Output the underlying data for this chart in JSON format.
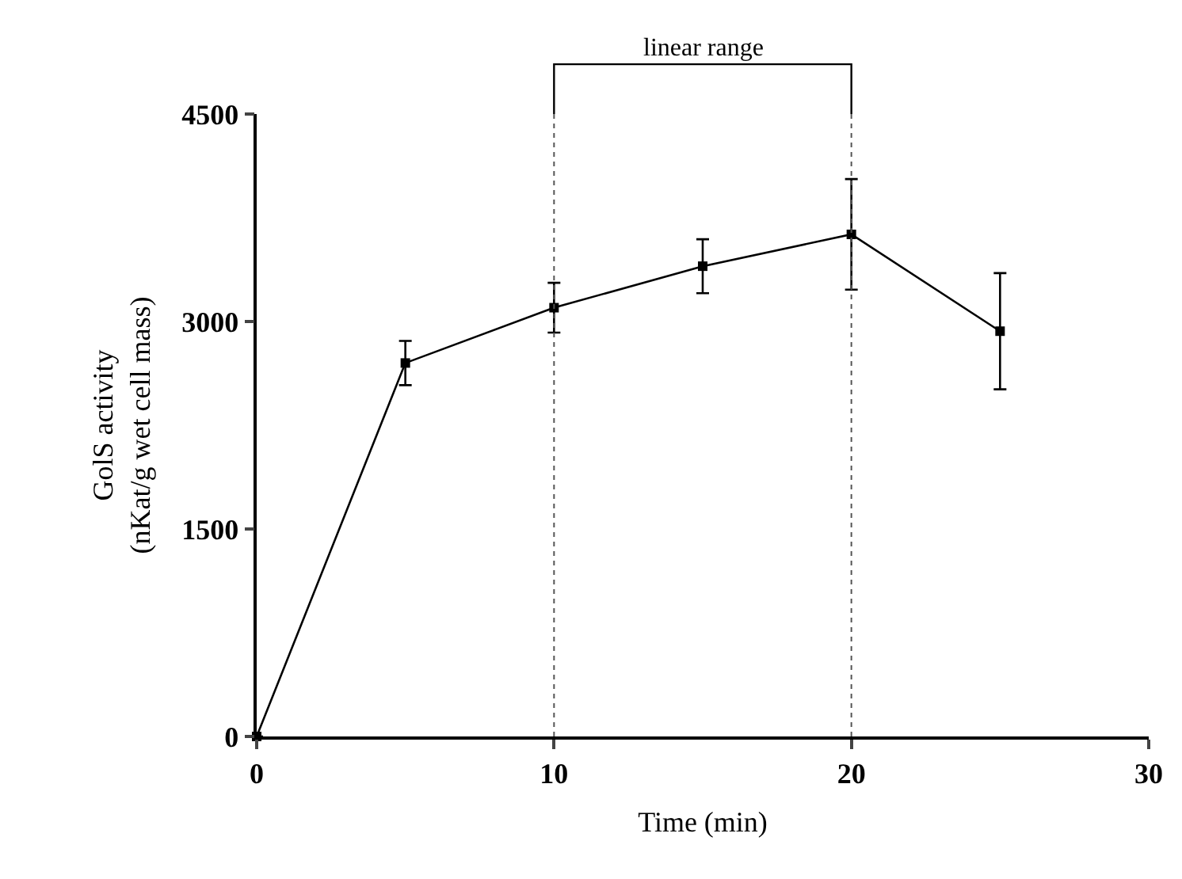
{
  "chart_data": {
    "type": "line",
    "xlabel": "Time (min)",
    "ylabel": "GolS activity\n(nKat/g wet cell mass)",
    "x": [
      0,
      5,
      10,
      15,
      20,
      25
    ],
    "series": [
      {
        "color": "#000000",
        "values": [
          0,
          2700,
          3100,
          3400,
          3630,
          2930
        ],
        "errors": [
          null,
          160,
          180,
          195,
          400,
          420
        ]
      }
    ],
    "xlim": [
      0,
      30
    ],
    "xticks": [
      0,
      10,
      20,
      30
    ],
    "ylim": [
      0,
      4500
    ],
    "yticks": [
      0,
      1500,
      3000,
      4500
    ],
    "ref_lines": [
      {
        "axis": "x",
        "value": 10,
        "line_style": "dotted",
        "color": "#555555"
      },
      {
        "axis": "x",
        "value": 20,
        "line_style": "dotted",
        "color": "#555555"
      }
    ],
    "annotations": [
      "linear range"
    ],
    "marker": "square",
    "line_style": "solid"
  }
}
